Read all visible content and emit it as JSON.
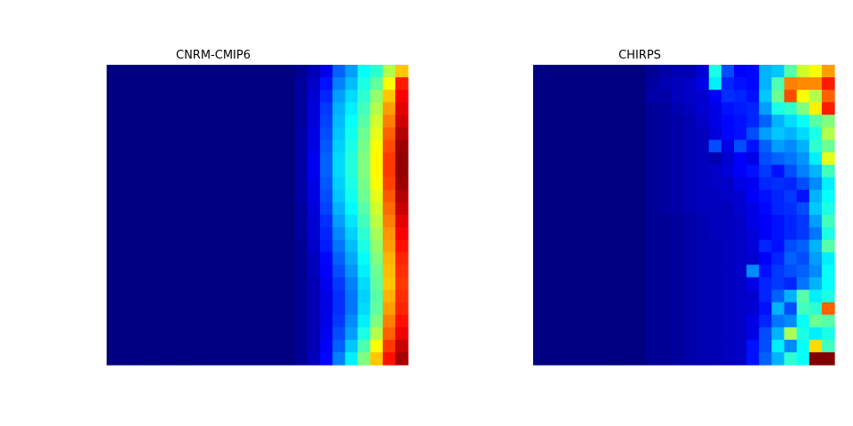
{
  "chart_data": [
    {
      "type": "heatmap",
      "title": "CNRM-CMIP6",
      "colormap": "jet",
      "vrange": [
        0,
        1
      ],
      "rows": 24,
      "cols": 24,
      "profile": [
        [
          0.0,
          0.0,
          0.0,
          0.0,
          0.0,
          0.0,
          0.0,
          0.0,
          0.0,
          0.0,
          0.0,
          0.0,
          0.0,
          0.0,
          0.0,
          0.02,
          0.05,
          0.1,
          0.22,
          0.28,
          0.38,
          0.42,
          0.55,
          0.68
        ],
        [
          0.0,
          0.0,
          0.0,
          0.0,
          0.0,
          0.0,
          0.0,
          0.0,
          0.0,
          0.0,
          0.0,
          0.0,
          0.0,
          0.0,
          0.0,
          0.03,
          0.07,
          0.14,
          0.25,
          0.31,
          0.4,
          0.47,
          0.62,
          0.85
        ],
        [
          0.0,
          0.0,
          0.0,
          0.0,
          0.0,
          0.0,
          0.0,
          0.0,
          0.0,
          0.0,
          0.0,
          0.0,
          0.0,
          0.0,
          0.0,
          0.03,
          0.08,
          0.16,
          0.28,
          0.34,
          0.42,
          0.52,
          0.68,
          0.88
        ],
        [
          0.0,
          0.0,
          0.0,
          0.0,
          0.0,
          0.0,
          0.0,
          0.0,
          0.0,
          0.0,
          0.0,
          0.0,
          0.0,
          0.0,
          0.0,
          0.03,
          0.09,
          0.18,
          0.3,
          0.36,
          0.44,
          0.55,
          0.72,
          0.9
        ],
        [
          0.0,
          0.0,
          0.0,
          0.0,
          0.0,
          0.0,
          0.0,
          0.0,
          0.0,
          0.0,
          0.0,
          0.0,
          0.0,
          0.0,
          0.0,
          0.03,
          0.09,
          0.19,
          0.31,
          0.38,
          0.46,
          0.58,
          0.75,
          0.92
        ],
        [
          0.0,
          0.0,
          0.0,
          0.0,
          0.0,
          0.0,
          0.0,
          0.0,
          0.0,
          0.0,
          0.0,
          0.0,
          0.0,
          0.0,
          0.0,
          0.04,
          0.1,
          0.2,
          0.32,
          0.39,
          0.48,
          0.6,
          0.78,
          0.95
        ],
        [
          0.0,
          0.0,
          0.0,
          0.0,
          0.0,
          0.0,
          0.0,
          0.0,
          0.0,
          0.0,
          0.0,
          0.0,
          0.0,
          0.0,
          0.0,
          0.04,
          0.1,
          0.21,
          0.33,
          0.4,
          0.49,
          0.62,
          0.8,
          0.97
        ],
        [
          0.0,
          0.0,
          0.0,
          0.0,
          0.0,
          0.0,
          0.0,
          0.0,
          0.0,
          0.0,
          0.0,
          0.0,
          0.0,
          0.0,
          0.0,
          0.04,
          0.11,
          0.22,
          0.34,
          0.41,
          0.5,
          0.63,
          0.82,
          0.98
        ],
        [
          0.0,
          0.0,
          0.0,
          0.0,
          0.0,
          0.0,
          0.0,
          0.0,
          0.0,
          0.0,
          0.0,
          0.0,
          0.0,
          0.0,
          0.0,
          0.04,
          0.11,
          0.22,
          0.34,
          0.41,
          0.5,
          0.63,
          0.82,
          0.98
        ],
        [
          0.0,
          0.0,
          0.0,
          0.0,
          0.0,
          0.0,
          0.0,
          0.0,
          0.0,
          0.0,
          0.0,
          0.0,
          0.0,
          0.0,
          0.0,
          0.04,
          0.1,
          0.21,
          0.33,
          0.4,
          0.49,
          0.62,
          0.81,
          0.97
        ],
        [
          0.0,
          0.0,
          0.0,
          0.0,
          0.0,
          0.0,
          0.0,
          0.0,
          0.0,
          0.0,
          0.0,
          0.0,
          0.0,
          0.0,
          0.0,
          0.04,
          0.1,
          0.2,
          0.32,
          0.39,
          0.48,
          0.6,
          0.79,
          0.95
        ],
        [
          0.0,
          0.0,
          0.0,
          0.0,
          0.0,
          0.0,
          0.0,
          0.0,
          0.0,
          0.0,
          0.0,
          0.0,
          0.0,
          0.0,
          0.0,
          0.03,
          0.09,
          0.19,
          0.3,
          0.37,
          0.46,
          0.58,
          0.77,
          0.93
        ],
        [
          0.0,
          0.0,
          0.0,
          0.0,
          0.0,
          0.0,
          0.0,
          0.0,
          0.0,
          0.0,
          0.0,
          0.0,
          0.0,
          0.0,
          0.0,
          0.03,
          0.08,
          0.17,
          0.28,
          0.35,
          0.44,
          0.56,
          0.75,
          0.9
        ],
        [
          0.0,
          0.0,
          0.0,
          0.0,
          0.0,
          0.0,
          0.0,
          0.0,
          0.0,
          0.0,
          0.0,
          0.0,
          0.0,
          0.0,
          0.0,
          0.03,
          0.08,
          0.16,
          0.26,
          0.33,
          0.42,
          0.54,
          0.73,
          0.88
        ],
        [
          0.0,
          0.0,
          0.0,
          0.0,
          0.0,
          0.0,
          0.0,
          0.0,
          0.0,
          0.0,
          0.0,
          0.0,
          0.0,
          0.0,
          0.0,
          0.02,
          0.07,
          0.15,
          0.24,
          0.31,
          0.4,
          0.52,
          0.72,
          0.86
        ],
        [
          0.0,
          0.0,
          0.0,
          0.0,
          0.0,
          0.0,
          0.0,
          0.0,
          0.0,
          0.0,
          0.0,
          0.0,
          0.0,
          0.0,
          0.0,
          0.02,
          0.06,
          0.13,
          0.22,
          0.29,
          0.38,
          0.5,
          0.7,
          0.84
        ],
        [
          0.0,
          0.0,
          0.0,
          0.0,
          0.0,
          0.0,
          0.0,
          0.0,
          0.0,
          0.0,
          0.0,
          0.0,
          0.0,
          0.0,
          0.0,
          0.02,
          0.06,
          0.12,
          0.2,
          0.27,
          0.36,
          0.48,
          0.69,
          0.83
        ],
        [
          0.0,
          0.0,
          0.0,
          0.0,
          0.0,
          0.0,
          0.0,
          0.0,
          0.0,
          0.0,
          0.0,
          0.0,
          0.0,
          0.0,
          0.0,
          0.02,
          0.05,
          0.11,
          0.18,
          0.25,
          0.34,
          0.47,
          0.68,
          0.82
        ],
        [
          0.0,
          0.0,
          0.0,
          0.0,
          0.0,
          0.0,
          0.0,
          0.0,
          0.0,
          0.0,
          0.0,
          0.0,
          0.0,
          0.0,
          0.0,
          0.02,
          0.05,
          0.1,
          0.17,
          0.24,
          0.33,
          0.46,
          0.7,
          0.83
        ],
        [
          0.0,
          0.0,
          0.0,
          0.0,
          0.0,
          0.0,
          0.0,
          0.0,
          0.0,
          0.0,
          0.0,
          0.0,
          0.0,
          0.0,
          0.0,
          0.02,
          0.05,
          0.1,
          0.17,
          0.24,
          0.34,
          0.47,
          0.72,
          0.84
        ],
        [
          0.0,
          0.0,
          0.0,
          0.0,
          0.0,
          0.0,
          0.0,
          0.0,
          0.0,
          0.0,
          0.0,
          0.0,
          0.0,
          0.0,
          0.0,
          0.02,
          0.05,
          0.1,
          0.18,
          0.26,
          0.36,
          0.5,
          0.75,
          0.86
        ],
        [
          0.0,
          0.0,
          0.0,
          0.0,
          0.0,
          0.0,
          0.0,
          0.0,
          0.0,
          0.0,
          0.0,
          0.0,
          0.0,
          0.0,
          0.0,
          0.02,
          0.05,
          0.11,
          0.2,
          0.28,
          0.4,
          0.55,
          0.78,
          0.89
        ],
        [
          0.0,
          0.0,
          0.0,
          0.0,
          0.0,
          0.0,
          0.0,
          0.0,
          0.0,
          0.0,
          0.0,
          0.0,
          0.0,
          0.0,
          0.0,
          0.02,
          0.05,
          0.12,
          0.22,
          0.32,
          0.45,
          0.62,
          0.82,
          0.93
        ],
        [
          0.0,
          0.0,
          0.0,
          0.0,
          0.0,
          0.0,
          0.0,
          0.0,
          0.0,
          0.0,
          0.0,
          0.0,
          0.0,
          0.0,
          0.0,
          0.02,
          0.06,
          0.13,
          0.25,
          0.36,
          0.5,
          0.68,
          0.86,
          0.96
        ]
      ]
    },
    {
      "type": "heatmap",
      "title": "CHIRPS",
      "colormap": "jet",
      "vrange": [
        0,
        1
      ],
      "rows": 24,
      "cols": 24,
      "profile": [
        [
          0.0,
          0.0,
          0.0,
          0.0,
          0.0,
          0.0,
          0.0,
          0.0,
          0.0,
          0.02,
          0.04,
          0.05,
          0.05,
          0.08,
          0.4,
          0.2,
          0.12,
          0.13,
          0.3,
          0.32,
          0.46,
          0.58,
          0.62,
          0.72
        ],
        [
          0.0,
          0.0,
          0.0,
          0.0,
          0.0,
          0.0,
          0.0,
          0.0,
          0.0,
          0.03,
          0.05,
          0.06,
          0.07,
          0.1,
          0.36,
          0.16,
          0.14,
          0.13,
          0.3,
          0.45,
          0.75,
          0.74,
          0.74,
          0.85
        ],
        [
          0.0,
          0.0,
          0.0,
          0.0,
          0.0,
          0.0,
          0.0,
          0.0,
          0.0,
          0.04,
          0.04,
          0.06,
          0.07,
          0.08,
          0.12,
          0.17,
          0.16,
          0.14,
          0.32,
          0.48,
          0.8,
          0.62,
          0.55,
          0.78
        ],
        [
          0.0,
          0.0,
          0.0,
          0.0,
          0.0,
          0.0,
          0.0,
          0.0,
          0.0,
          0.02,
          0.03,
          0.05,
          0.06,
          0.08,
          0.1,
          0.14,
          0.15,
          0.16,
          0.28,
          0.4,
          0.42,
          0.5,
          0.64,
          0.85
        ],
        [
          0.0,
          0.0,
          0.0,
          0.0,
          0.0,
          0.0,
          0.0,
          0.0,
          0.0,
          0.02,
          0.03,
          0.04,
          0.05,
          0.07,
          0.1,
          0.13,
          0.14,
          0.16,
          0.22,
          0.3,
          0.34,
          0.38,
          0.46,
          0.5
        ],
        [
          0.0,
          0.0,
          0.0,
          0.0,
          0.0,
          0.0,
          0.0,
          0.0,
          0.0,
          0.02,
          0.03,
          0.04,
          0.05,
          0.06,
          0.09,
          0.13,
          0.14,
          0.2,
          0.28,
          0.32,
          0.3,
          0.34,
          0.4,
          0.55
        ],
        [
          0.0,
          0.0,
          0.0,
          0.0,
          0.0,
          0.0,
          0.0,
          0.0,
          0.0,
          0.02,
          0.03,
          0.04,
          0.05,
          0.06,
          0.2,
          0.1,
          0.2,
          0.14,
          0.22,
          0.28,
          0.26,
          0.3,
          0.42,
          0.48
        ],
        [
          0.0,
          0.0,
          0.0,
          0.0,
          0.0,
          0.0,
          0.0,
          0.0,
          0.0,
          0.02,
          0.03,
          0.04,
          0.05,
          0.06,
          0.05,
          0.08,
          0.12,
          0.1,
          0.2,
          0.22,
          0.24,
          0.27,
          0.36,
          0.6
        ],
        [
          0.0,
          0.0,
          0.0,
          0.0,
          0.0,
          0.0,
          0.0,
          0.0,
          0.0,
          0.02,
          0.03,
          0.04,
          0.05,
          0.06,
          0.07,
          0.09,
          0.12,
          0.14,
          0.18,
          0.14,
          0.2,
          0.25,
          0.3,
          0.44
        ],
        [
          0.0,
          0.0,
          0.0,
          0.0,
          0.0,
          0.0,
          0.0,
          0.0,
          0.0,
          0.02,
          0.03,
          0.04,
          0.05,
          0.06,
          0.07,
          0.07,
          0.1,
          0.11,
          0.16,
          0.17,
          0.16,
          0.2,
          0.26,
          0.36
        ],
        [
          0.0,
          0.0,
          0.0,
          0.0,
          0.0,
          0.0,
          0.0,
          0.0,
          0.0,
          0.02,
          0.03,
          0.04,
          0.05,
          0.06,
          0.06,
          0.07,
          0.08,
          0.12,
          0.14,
          0.16,
          0.18,
          0.14,
          0.3,
          0.38
        ],
        [
          0.0,
          0.0,
          0.0,
          0.0,
          0.0,
          0.0,
          0.0,
          0.0,
          0.0,
          0.02,
          0.03,
          0.04,
          0.05,
          0.06,
          0.06,
          0.06,
          0.08,
          0.1,
          0.13,
          0.16,
          0.17,
          0.2,
          0.32,
          0.4
        ],
        [
          0.0,
          0.0,
          0.0,
          0.0,
          0.0,
          0.0,
          0.0,
          0.0,
          0.0,
          0.02,
          0.02,
          0.03,
          0.04,
          0.05,
          0.06,
          0.06,
          0.07,
          0.1,
          0.12,
          0.14,
          0.16,
          0.18,
          0.28,
          0.44
        ],
        [
          0.0,
          0.0,
          0.0,
          0.0,
          0.0,
          0.0,
          0.0,
          0.0,
          0.0,
          0.02,
          0.02,
          0.03,
          0.04,
          0.05,
          0.06,
          0.06,
          0.07,
          0.09,
          0.12,
          0.14,
          0.16,
          0.18,
          0.24,
          0.4
        ],
        [
          0.0,
          0.0,
          0.0,
          0.0,
          0.0,
          0.0,
          0.0,
          0.0,
          0.0,
          0.02,
          0.02,
          0.03,
          0.04,
          0.05,
          0.05,
          0.06,
          0.07,
          0.09,
          0.16,
          0.14,
          0.2,
          0.22,
          0.3,
          0.46
        ],
        [
          0.0,
          0.0,
          0.0,
          0.0,
          0.0,
          0.0,
          0.0,
          0.0,
          0.0,
          0.02,
          0.02,
          0.03,
          0.04,
          0.05,
          0.05,
          0.06,
          0.07,
          0.08,
          0.12,
          0.16,
          0.22,
          0.2,
          0.28,
          0.36
        ],
        [
          0.0,
          0.0,
          0.0,
          0.0,
          0.0,
          0.0,
          0.0,
          0.0,
          0.0,
          0.02,
          0.02,
          0.03,
          0.04,
          0.05,
          0.05,
          0.06,
          0.07,
          0.26,
          0.14,
          0.18,
          0.2,
          0.22,
          0.26,
          0.38
        ],
        [
          0.0,
          0.0,
          0.0,
          0.0,
          0.0,
          0.0,
          0.0,
          0.0,
          0.0,
          0.02,
          0.02,
          0.03,
          0.04,
          0.05,
          0.05,
          0.06,
          0.07,
          0.1,
          0.16,
          0.18,
          0.16,
          0.24,
          0.3,
          0.38
        ],
        [
          0.0,
          0.0,
          0.0,
          0.0,
          0.0,
          0.0,
          0.0,
          0.0,
          0.0,
          0.02,
          0.02,
          0.03,
          0.04,
          0.05,
          0.05,
          0.06,
          0.07,
          0.08,
          0.16,
          0.22,
          0.3,
          0.46,
          0.36,
          0.4
        ],
        [
          0.0,
          0.0,
          0.0,
          0.0,
          0.0,
          0.0,
          0.0,
          0.0,
          0.0,
          0.02,
          0.02,
          0.03,
          0.04,
          0.05,
          0.05,
          0.06,
          0.07,
          0.08,
          0.14,
          0.3,
          0.2,
          0.44,
          0.42,
          0.78
        ],
        [
          0.0,
          0.0,
          0.0,
          0.0,
          0.0,
          0.0,
          0.0,
          0.0,
          0.0,
          0.02,
          0.02,
          0.03,
          0.04,
          0.05,
          0.05,
          0.06,
          0.07,
          0.1,
          0.16,
          0.24,
          0.26,
          0.38,
          0.48,
          0.46
        ],
        [
          0.0,
          0.0,
          0.0,
          0.0,
          0.0,
          0.0,
          0.0,
          0.0,
          0.0,
          0.02,
          0.02,
          0.03,
          0.04,
          0.05,
          0.05,
          0.06,
          0.07,
          0.1,
          0.2,
          0.3,
          0.54,
          0.4,
          0.36,
          0.4
        ],
        [
          0.0,
          0.0,
          0.0,
          0.0,
          0.0,
          0.0,
          0.0,
          0.0,
          0.0,
          0.02,
          0.02,
          0.03,
          0.04,
          0.05,
          0.05,
          0.06,
          0.07,
          0.14,
          0.2,
          0.36,
          0.26,
          0.38,
          0.66,
          0.44
        ],
        [
          0.0,
          0.0,
          0.0,
          0.0,
          0.0,
          0.0,
          0.0,
          0.0,
          0.0,
          0.02,
          0.02,
          0.03,
          0.04,
          0.05,
          0.05,
          0.06,
          0.07,
          0.14,
          0.22,
          0.3,
          0.42,
          0.38,
          1.0,
          1.0
        ]
      ]
    }
  ]
}
